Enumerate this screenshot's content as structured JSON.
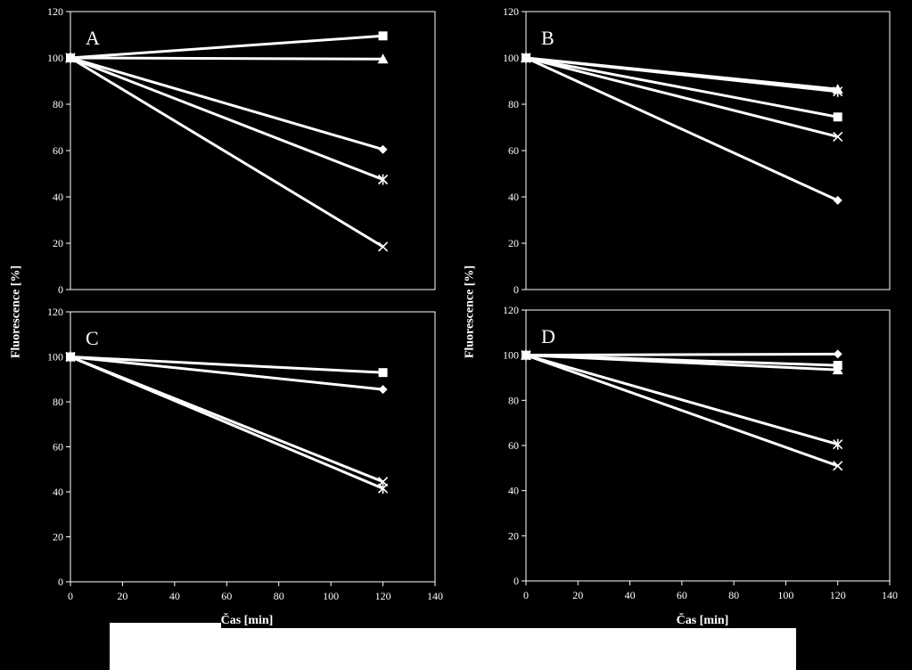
{
  "chart_data": [
    {
      "type": "line",
      "label": "A",
      "x": [
        0,
        120
      ],
      "xlim": [
        0,
        140
      ],
      "xticks": [
        0,
        20,
        40,
        60,
        80,
        100,
        120,
        140
      ],
      "ylim": [
        0,
        120
      ],
      "yticks": [
        0,
        20,
        40,
        60,
        80,
        100,
        120
      ],
      "xlabel": "",
      "ylabel": "Fluorescence [%]",
      "series": [
        {
          "marker": "square",
          "values": [
            100,
            109.5
          ]
        },
        {
          "marker": "triangle",
          "values": [
            100,
            99.5
          ]
        },
        {
          "marker": "diamond",
          "values": [
            100,
            60.5
          ]
        },
        {
          "marker": "asterisk",
          "values": [
            100,
            47.5
          ]
        },
        {
          "marker": "x",
          "values": [
            100,
            18.5
          ]
        }
      ]
    },
    {
      "type": "line",
      "label": "B",
      "x": [
        0,
        120
      ],
      "xlim": [
        0,
        140
      ],
      "xticks": [
        0,
        20,
        40,
        60,
        80,
        100,
        120,
        140
      ],
      "ylim": [
        0,
        120
      ],
      "yticks": [
        0,
        20,
        40,
        60,
        80,
        100,
        120
      ],
      "xlabel": "",
      "ylabel": "Fluorescence [%]",
      "series": [
        {
          "marker": "triangle",
          "values": [
            100,
            86.5
          ]
        },
        {
          "marker": "asterisk",
          "values": [
            100,
            85.5
          ]
        },
        {
          "marker": "square",
          "values": [
            100,
            74.5
          ]
        },
        {
          "marker": "x",
          "values": [
            100,
            66
          ]
        },
        {
          "marker": "diamond",
          "values": [
            100,
            38.5
          ]
        }
      ]
    },
    {
      "type": "line",
      "label": "C",
      "x": [
        0,
        120
      ],
      "xlim": [
        0,
        140
      ],
      "xticks": [
        0,
        20,
        40,
        60,
        80,
        100,
        120,
        140
      ],
      "ylim": [
        0,
        120
      ],
      "yticks": [
        0,
        20,
        40,
        60,
        80,
        100,
        120
      ],
      "xlabel": "Čas [min]",
      "ylabel": "",
      "series": [
        {
          "marker": "square",
          "values": [
            100,
            93
          ]
        },
        {
          "marker": "diamond",
          "values": [
            100,
            85.5
          ]
        },
        {
          "marker": "x",
          "values": [
            100,
            44.5
          ]
        },
        {
          "marker": "asterisk",
          "values": [
            100,
            41.5
          ]
        }
      ]
    },
    {
      "type": "line",
      "label": "D",
      "x": [
        0,
        120
      ],
      "xlim": [
        0,
        140
      ],
      "xticks": [
        0,
        20,
        40,
        60,
        80,
        100,
        120,
        140
      ],
      "ylim": [
        0,
        120
      ],
      "yticks": [
        0,
        20,
        40,
        60,
        80,
        100,
        120
      ],
      "xlabel": "Čas [min]",
      "ylabel": "",
      "series": [
        {
          "marker": "diamond",
          "values": [
            100,
            100.5
          ]
        },
        {
          "marker": "square",
          "values": [
            100,
            95.5
          ]
        },
        {
          "marker": "triangle",
          "values": [
            100,
            93.5
          ]
        },
        {
          "marker": "asterisk",
          "values": [
            100,
            60.5
          ]
        },
        {
          "marker": "x",
          "values": [
            100,
            51
          ]
        }
      ]
    }
  ]
}
